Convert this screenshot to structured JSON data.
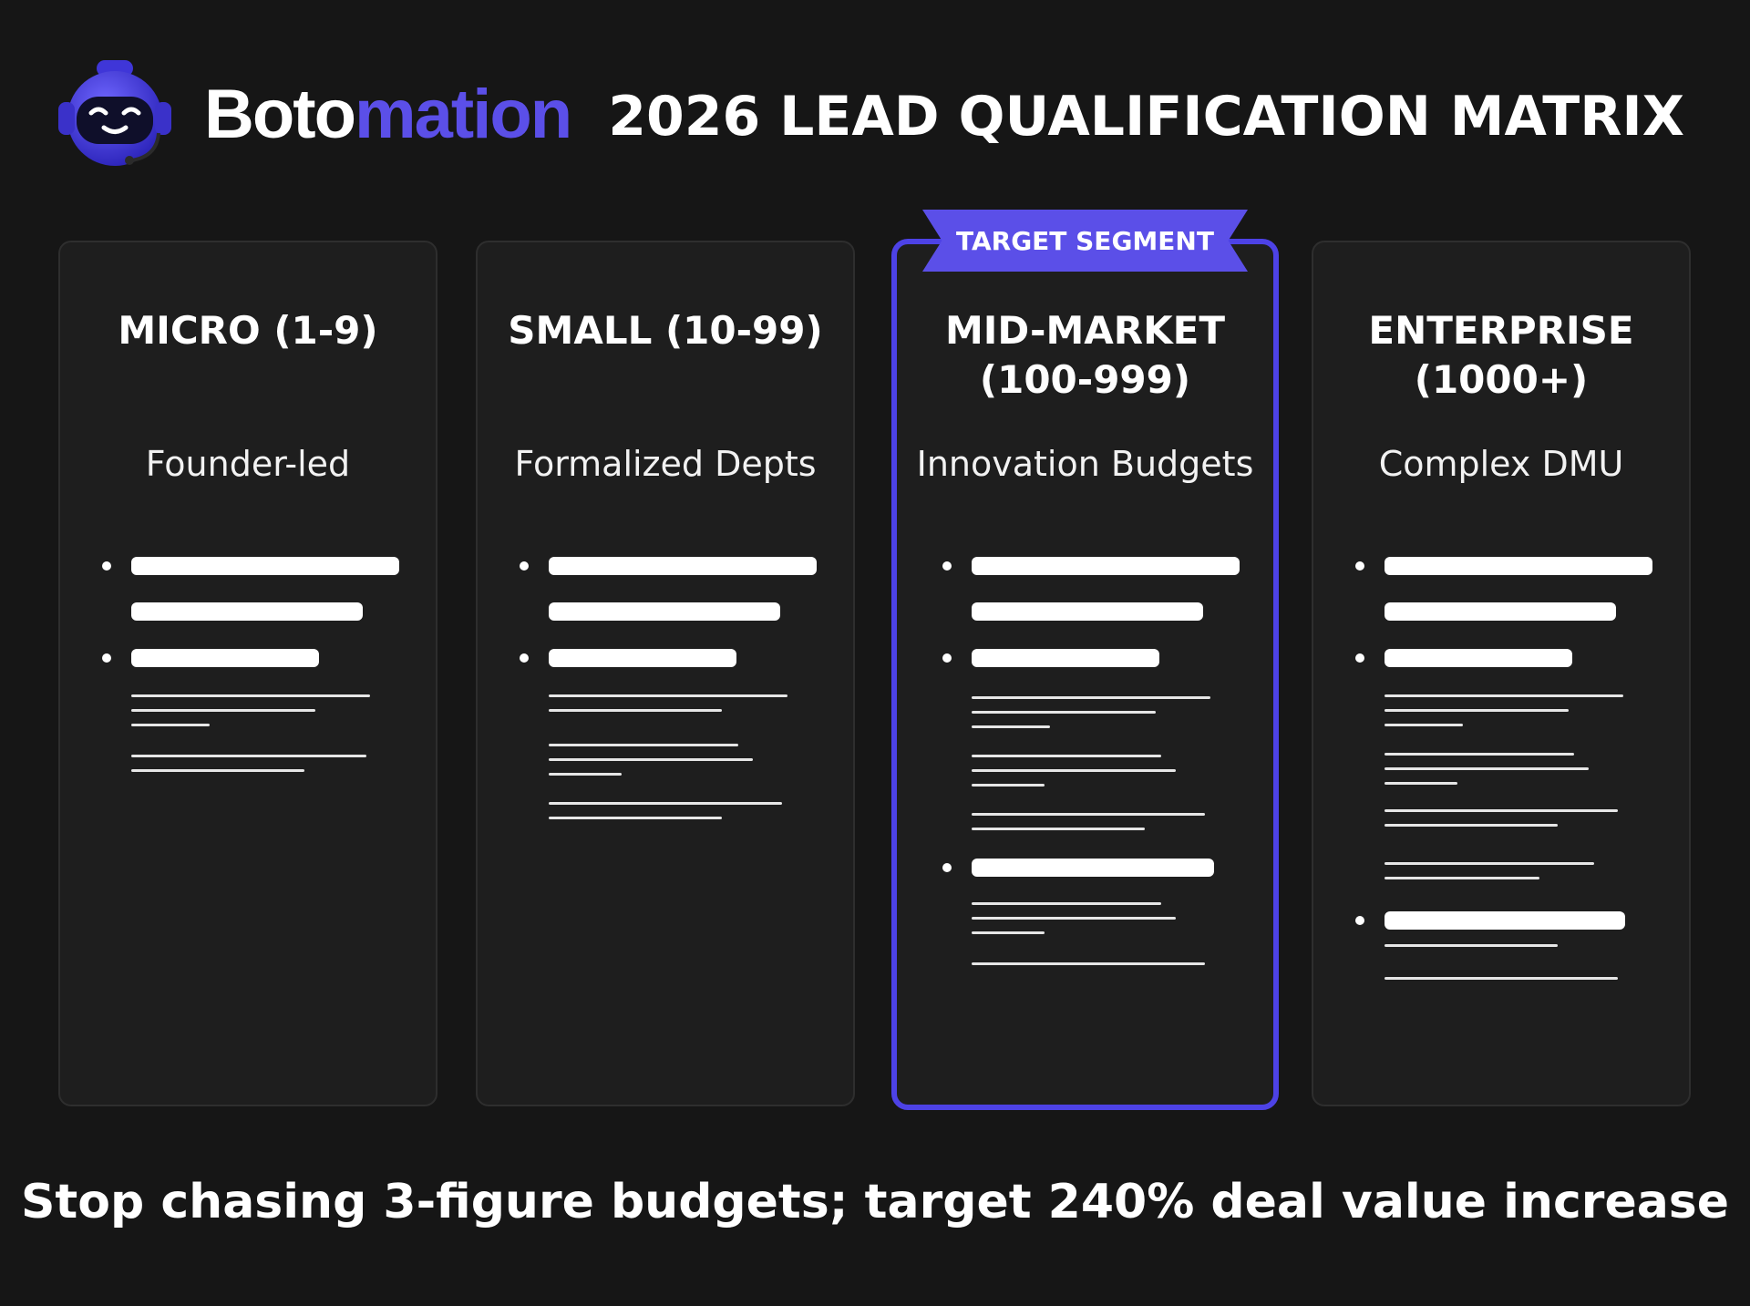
{
  "header": {
    "brand_part1": "Boto",
    "brand_part2": "mation",
    "title": "2026 LEAD QUALIFICATION MATRIX"
  },
  "badge": {
    "label": "TARGET SEGMENT"
  },
  "columns": [
    {
      "title": "MICRO (1-9)",
      "subtitle": "Founder-led"
    },
    {
      "title": "SMALL (10-99)",
      "subtitle": "Formalized Depts"
    },
    {
      "title": "MID-MARKET\n(100-999)",
      "subtitle": "Innovation Budgets",
      "highlighted": true
    },
    {
      "title": "ENTERPRISE\n(1000+)",
      "subtitle": "Complex DMU"
    }
  ],
  "footer": {
    "tagline": "Stop chasing 3-figure budgets; target 240% deal value increase"
  },
  "colors": {
    "background": "#161616",
    "accent": "#5b4fe8",
    "card": "#1e1e1e",
    "text": "#ffffff"
  },
  "icons": {
    "logo": "robot-headset-icon"
  }
}
